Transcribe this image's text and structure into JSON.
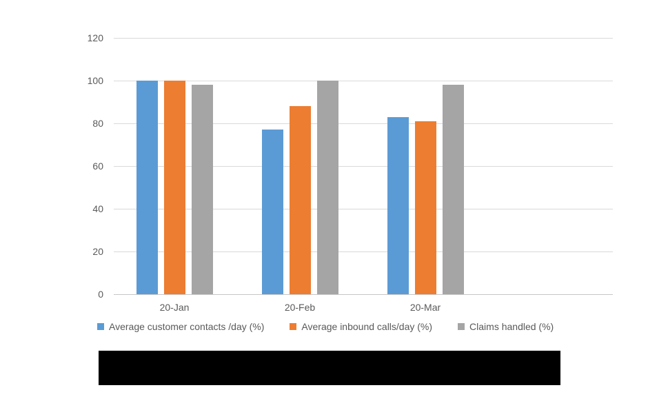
{
  "chart_data": {
    "type": "bar",
    "title": "",
    "categories": [
      "20-Jan",
      "20-Feb",
      "20-Mar"
    ],
    "series": [
      {
        "name": "Average customer contacts /day (%)",
        "color": "#5B9BD5",
        "values": [
          100,
          77,
          83
        ]
      },
      {
        "name": "Average inbound calls/day (%)",
        "color": "#ED7D31",
        "values": [
          100,
          88,
          81
        ]
      },
      {
        "name": "Claims handled (%)",
        "color": "#A5A5A5",
        "values": [
          98,
          100,
          98
        ]
      }
    ],
    "xlabel": "",
    "ylabel": "",
    "ylim": [
      0,
      120
    ],
    "yticks": [
      0,
      20,
      40,
      60,
      80,
      100,
      120
    ],
    "grid": true,
    "legend_position": "bottom"
  },
  "styles": {
    "background_color": "#FFFFFF",
    "gridline_color": "#D9D9D9",
    "axis_line_color": "#C6C6C6",
    "text_color": "#595959",
    "redaction_color": "#000000"
  }
}
